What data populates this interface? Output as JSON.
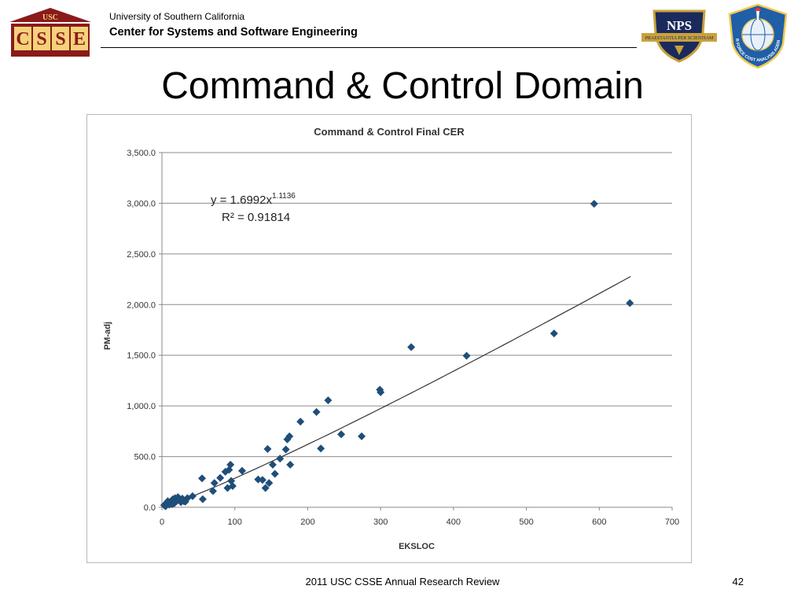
{
  "header": {
    "org_line1": "University of Southern California",
    "org_line2": "Center for Systems and Software Engineering",
    "usc_logo": {
      "top_text": "USC",
      "letters": [
        "C",
        "S",
        "S",
        "E"
      ],
      "icon": "usc-csse-logo"
    },
    "nps_logo": {
      "text": "NPS",
      "motto": "PRAESTANTIA PER SCIENTIAM",
      "icon": "nps-seal-logo"
    },
    "af_logo": {
      "text": "AIR FORCE COST ANALYSIS AGENCY",
      "icon": "af-cost-analysis-seal-logo"
    }
  },
  "slide": {
    "title": "Command & Control Domain"
  },
  "footer": {
    "center_text": "2011 USC CSSE Annual Research Review",
    "page_number": "42"
  },
  "colors": {
    "marker": "#1f4e79",
    "trendline": "#333333",
    "grid": "#8c8c8c",
    "logo_red": "#8b1a1a",
    "nps_navy": "#1b2a5c",
    "nps_gold": "#c8a23c",
    "af_blue": "#1f5fa8"
  },
  "chart_data": {
    "type": "scatter",
    "title": "Command & Control Final CER",
    "xlabel": "EKSLOC",
    "ylabel": "PM-adj",
    "xlim": [
      0,
      700
    ],
    "ylim": [
      0,
      3500
    ],
    "x_ticks": [
      0,
      100,
      200,
      300,
      400,
      500,
      600,
      700
    ],
    "x_tick_labels": [
      "0",
      "100",
      "200",
      "300",
      "400",
      "500",
      "600",
      "700"
    ],
    "y_ticks": [
      0,
      500,
      1000,
      1500,
      2000,
      2500,
      3000,
      3500
    ],
    "y_tick_labels": [
      "0.0",
      "500.0",
      "1,000.0",
      "1,500.0",
      "2,000.0",
      "2,500.0",
      "3,000.0",
      "3,500.0"
    ],
    "grid": "horizontal",
    "equation_text": "y = 1.6992x",
    "equation_exponent": "1.1136",
    "r2_text": "R² = 0.91814",
    "trendline": {
      "type": "power",
      "coefficient": 1.6992,
      "exponent": 1.1136,
      "x_range": [
        5,
        643
      ]
    },
    "points": [
      [
        3,
        20
      ],
      [
        5,
        10
      ],
      [
        6,
        40
      ],
      [
        8,
        60
      ],
      [
        10,
        25
      ],
      [
        12,
        50
      ],
      [
        14,
        30
      ],
      [
        15,
        80
      ],
      [
        17,
        40
      ],
      [
        18,
        90
      ],
      [
        20,
        60
      ],
      [
        22,
        100
      ],
      [
        24,
        70
      ],
      [
        26,
        50
      ],
      [
        28,
        85
      ],
      [
        30,
        60
      ],
      [
        32,
        55
      ],
      [
        35,
        90
      ],
      [
        42,
        110
      ],
      [
        55,
        285
      ],
      [
        56,
        80
      ],
      [
        70,
        160
      ],
      [
        72,
        240
      ],
      [
        80,
        290
      ],
      [
        87,
        350
      ],
      [
        90,
        190
      ],
      [
        92,
        370
      ],
      [
        94,
        420
      ],
      [
        95,
        260
      ],
      [
        97,
        210
      ],
      [
        110,
        360
      ],
      [
        132,
        275
      ],
      [
        138,
        270
      ],
      [
        142,
        190
      ],
      [
        145,
        575
      ],
      [
        147,
        240
      ],
      [
        152,
        420
      ],
      [
        155,
        330
      ],
      [
        162,
        480
      ],
      [
        170,
        570
      ],
      [
        172,
        670
      ],
      [
        175,
        700
      ],
      [
        176,
        420
      ],
      [
        190,
        845
      ],
      [
        212,
        940
      ],
      [
        218,
        580
      ],
      [
        228,
        1055
      ],
      [
        246,
        720
      ],
      [
        274,
        700
      ],
      [
        299,
        1160
      ],
      [
        300,
        1135
      ],
      [
        342,
        1580
      ],
      [
        418,
        1495
      ],
      [
        538,
        1715
      ],
      [
        593,
        2995
      ],
      [
        642,
        2015
      ]
    ]
  }
}
